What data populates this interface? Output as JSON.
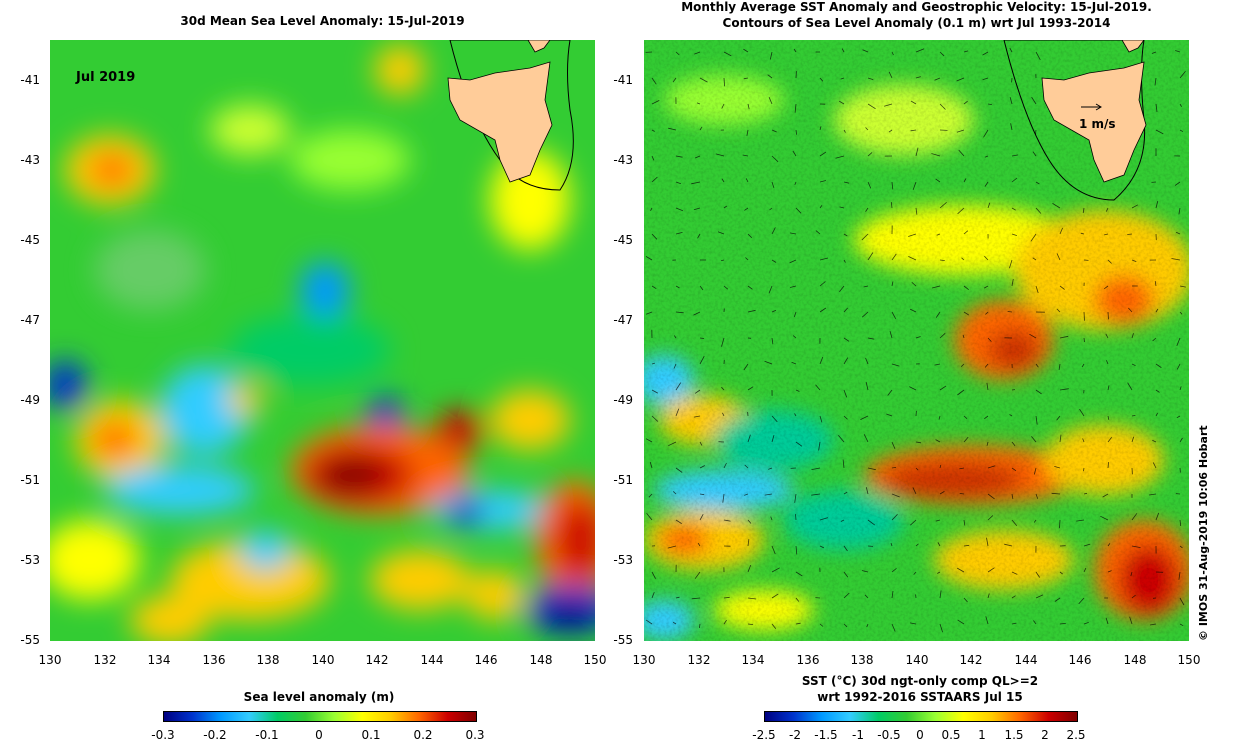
{
  "left": {
    "title": "30d Mean Sea Level Anomaly: 15-Jul-2019",
    "inset_label": "Jul 2019",
    "y_ticks": [
      "-41",
      "-43",
      "-45",
      "-47",
      "-49",
      "-51",
      "-53",
      "-55"
    ],
    "x_ticks": [
      "130",
      "132",
      "134",
      "136",
      "138",
      "140",
      "142",
      "144",
      "146",
      "148",
      "150"
    ],
    "colorbar_label": "Sea level anomaly (m)",
    "colorbar_ticks": [
      "-0.3",
      "-0.2",
      "-0.1",
      "0",
      "0.1",
      "0.2",
      "0.3"
    ]
  },
  "right": {
    "title_line1": "Monthly Average SST Anomaly  and Geostrophic Velocity: 15-Jul-2019.",
    "title_line2": "Contours of Sea Level Anomaly (0.1 m) wrt Jul 1993-2014",
    "scale_label": "1 m/s",
    "y_ticks": [
      "-41",
      "-43",
      "-45",
      "-47",
      "-49",
      "-51",
      "-53",
      "-55"
    ],
    "x_ticks": [
      "130",
      "132",
      "134",
      "136",
      "138",
      "140",
      "142",
      "144",
      "146",
      "148",
      "150"
    ],
    "colorbar_label_line1": "SST (°C) 30d ngt-only comp QL>=2",
    "colorbar_label_line2": "wrt 1992-2016 SSTAARS Jul 15",
    "colorbar_ticks": [
      "-2.5",
      "-2",
      "-1.5",
      "-1",
      "-0.5",
      "0",
      "0.5",
      "1",
      "1.5",
      "2",
      "2.5"
    ]
  },
  "credit": "© IMOS 31-Aug-2019 10:06 Hobart",
  "colors": {
    "ocean_base": "#33cc33",
    "land": "#ffcc99",
    "ramp": [
      "#000080",
      "#0033cc",
      "#0099ff",
      "#33ccff",
      "#00cc66",
      "#33cc33",
      "#99ff33",
      "#ffff00",
      "#ffcc00",
      "#ff6600",
      "#cc0000",
      "#800000"
    ]
  }
}
